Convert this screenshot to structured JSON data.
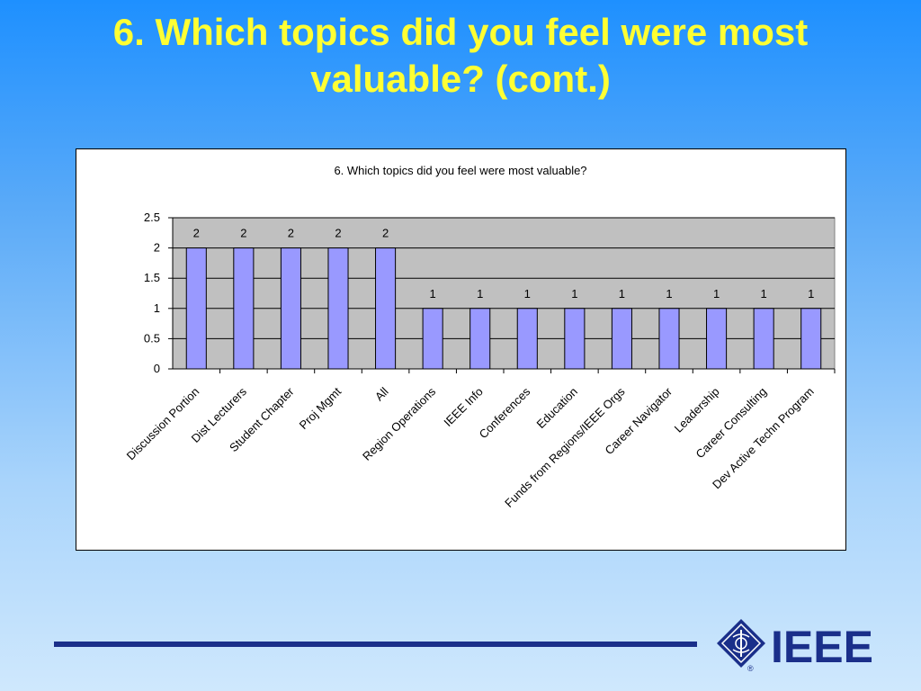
{
  "slide": {
    "title_line1": "6. Which topics did you feel were most",
    "title_line2": "valuable? (cont.)"
  },
  "logo": {
    "text": "IEEE",
    "registered": "®"
  },
  "colors": {
    "bar_fill": "#9999ff",
    "plot_bg": "#c0c0c0",
    "title_color": "#ffff33",
    "rule_color": "#1a2f8a"
  },
  "chart_data": {
    "type": "bar",
    "title": "6. Which topics did you feel were most valuable?",
    "categories": [
      "Discussion Portion",
      "Dist Lecturers",
      "Student Chapter",
      "Proj Mgmt",
      "All",
      "Region Operations",
      "IEEE Info",
      "Conferences",
      "Education",
      "Funds from Regions/IEEE Orgs",
      "Career Navigator",
      "Leadership",
      "Career Consulting",
      "Dev Active Techn Program"
    ],
    "values": [
      2,
      2,
      2,
      2,
      2,
      1,
      1,
      1,
      1,
      1,
      1,
      1,
      1,
      1
    ],
    "yticks": [
      "0",
      "0.5",
      "1",
      "1.5",
      "2",
      "2.5"
    ],
    "ylim": [
      0,
      2.5
    ],
    "grid": true,
    "legend": "none"
  }
}
